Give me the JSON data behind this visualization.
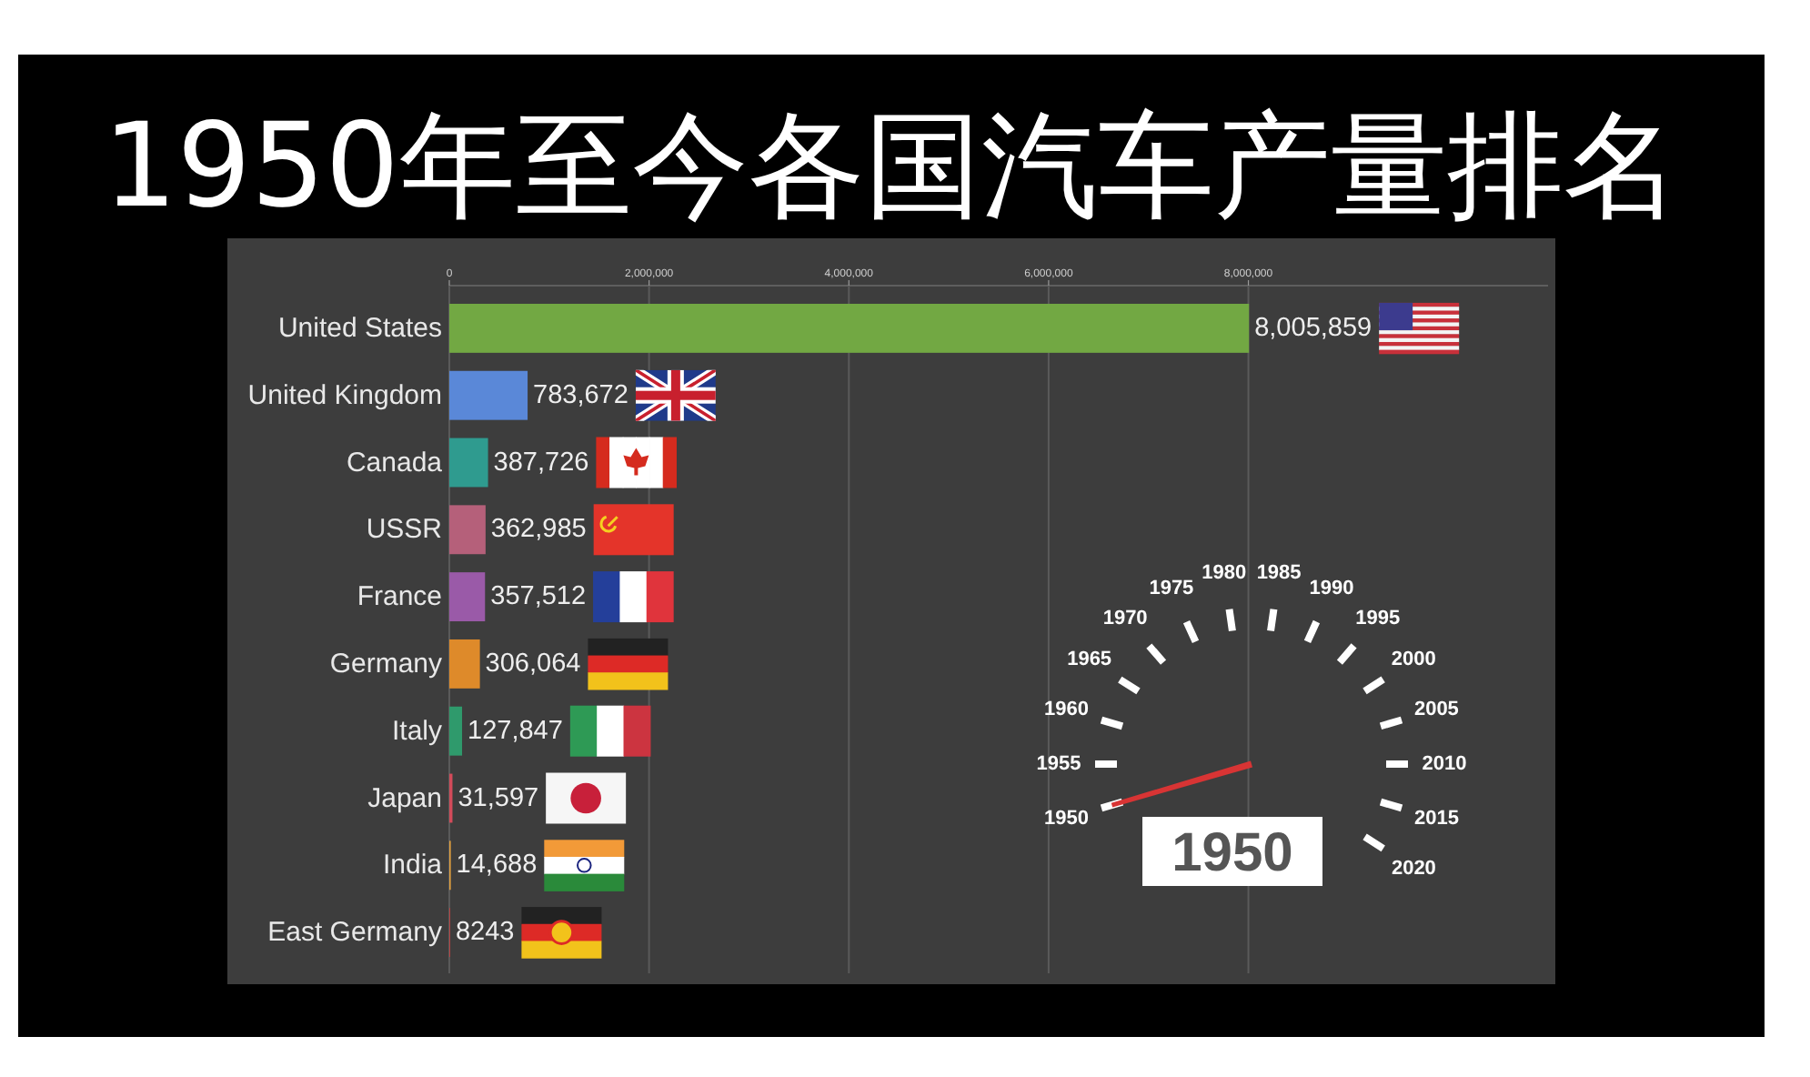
{
  "chart_data": {
    "type": "bar",
    "orientation": "horizontal",
    "title": "1950年至今各国汽车产量排名",
    "categories": [
      "United States",
      "United Kingdom",
      "Canada",
      "USSR",
      "France",
      "Germany",
      "Italy",
      "Japan",
      "India",
      "East Germany"
    ],
    "values": [
      8005859,
      783672,
      387726,
      362985,
      357512,
      306064,
      127847,
      31597,
      14688,
      8243
    ],
    "value_labels": [
      "8,005,859",
      "783,672",
      "387,726",
      "362,985",
      "357,512",
      "306,064",
      "127,847",
      "31,597",
      "14,688",
      "8243"
    ],
    "colors": [
      "#72a843",
      "#5a88d8",
      "#2f9b8f",
      "#b5607a",
      "#9a5aa8",
      "#de8a2a",
      "#2f9a6c",
      "#d24b5a",
      "#e0a040",
      "#c04040"
    ],
    "xlim": [
      0,
      11000000
    ],
    "xticks": [
      0,
      {
        "value": 2000000,
        "label": "2,000,000"
      },
      {
        "value": 4000000,
        "label": "4,000,000"
      },
      {
        "value": 6000000,
        "label": "6,000,000"
      },
      {
        "value": 8000000,
        "label": "8,000,000"
      }
    ],
    "grid": "x",
    "annotations": [
      "1950",
      "1955",
      "1960",
      "1965",
      "1970",
      "1975",
      "1980",
      "1985",
      "1990",
      "1995",
      "2000",
      "2005",
      "2010",
      "2015",
      "2020",
      "1950"
    ]
  }
}
